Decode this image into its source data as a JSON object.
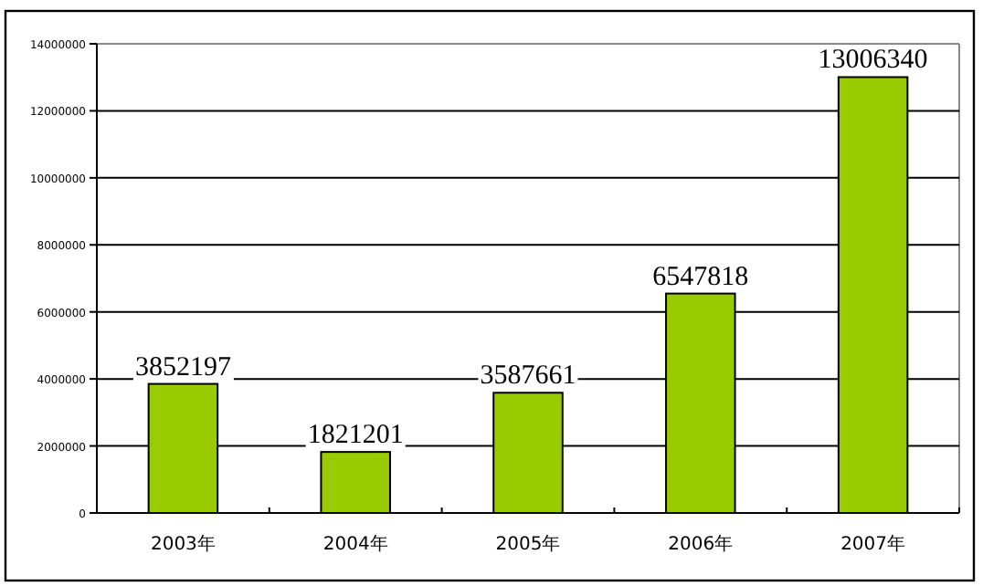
{
  "chart_data": {
    "type": "bar",
    "categories": [
      "2003年",
      "2004年",
      "2005年",
      "2006年",
      "2007年"
    ],
    "values": [
      3852197,
      1821201,
      3587661,
      6547818,
      13006340
    ],
    "color": "#99cc00",
    "ylim": [
      0,
      14000000
    ],
    "yticks": [
      0,
      2000000,
      4000000,
      6000000,
      8000000,
      10000000,
      12000000,
      14000000
    ],
    "grid": "y",
    "data_labels": true
  }
}
